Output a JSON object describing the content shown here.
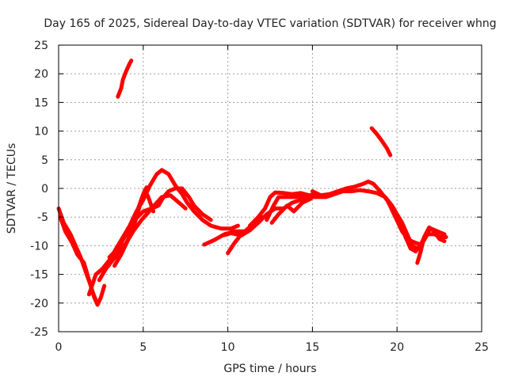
{
  "chart_data": {
    "type": "line",
    "title": "Day 165 of 2025, Sidereal Day-to-day VTEC variation (SDTVAR) for receiver whng",
    "xlabel": "GPS time / hours",
    "ylabel": "SDTVAR / TECUs",
    "xlim": [
      0,
      25
    ],
    "ylim": [
      -25,
      25
    ],
    "xticks": [
      0,
      5,
      10,
      15,
      20,
      25
    ],
    "yticks": [
      -25,
      -20,
      -15,
      -10,
      -5,
      0,
      5,
      10,
      15,
      20,
      25
    ],
    "xtick_labels": [
      "0",
      "5",
      "10",
      "15",
      "20",
      "25"
    ],
    "ytick_labels": [
      "-25",
      "-20",
      "-15",
      "-10",
      "-5",
      "0",
      "5",
      "10",
      "15",
      "20",
      "25"
    ],
    "grid": true,
    "legend": "none",
    "series_color": "#ff0000",
    "series": [
      {
        "name": "trace-1",
        "points": [
          [
            0,
            -3.5
          ],
          [
            0.3,
            -6
          ],
          [
            0.7,
            -8
          ],
          [
            1.0,
            -10
          ],
          [
            1.3,
            -12
          ],
          [
            1.6,
            -14.5
          ],
          [
            1.9,
            -17
          ],
          [
            2.1,
            -19
          ],
          [
            2.3,
            -20.3
          ],
          [
            2.5,
            -19
          ],
          [
            2.7,
            -17
          ]
        ]
      },
      {
        "name": "trace-2",
        "points": [
          [
            0.1,
            -5
          ],
          [
            0.4,
            -7.5
          ],
          [
            0.8,
            -9.5
          ],
          [
            1.1,
            -11.5
          ],
          [
            1.5,
            -13
          ],
          [
            1.8,
            -16
          ],
          [
            2.0,
            -18
          ],
          [
            2.2,
            -19.5
          ]
        ]
      },
      {
        "name": "trace-3",
        "points": [
          [
            1.8,
            -18.5
          ],
          [
            2.2,
            -15
          ],
          [
            2.6,
            -14
          ],
          [
            3.0,
            -12.5
          ],
          [
            3.4,
            -10.5
          ],
          [
            3.8,
            -8.5
          ],
          [
            4.2,
            -6.5
          ],
          [
            4.6,
            -4
          ],
          [
            5.0,
            -2
          ],
          [
            5.4,
            0.5
          ],
          [
            5.8,
            2.5
          ],
          [
            6.1,
            3.2
          ],
          [
            6.5,
            2.5
          ],
          [
            6.9,
            0.5
          ],
          [
            7.3,
            -1
          ],
          [
            7.6,
            -2.5
          ],
          [
            8.0,
            -4
          ],
          [
            8.5,
            -5.5
          ],
          [
            9.0,
            -6.5
          ],
          [
            9.6,
            -7
          ],
          [
            10.2,
            -7
          ],
          [
            10.6,
            -6.5
          ]
        ]
      },
      {
        "name": "trace-4",
        "points": [
          [
            2.4,
            -16
          ],
          [
            2.8,
            -14
          ],
          [
            3.2,
            -12.5
          ],
          [
            3.6,
            -11
          ],
          [
            4.0,
            -9.5
          ],
          [
            4.3,
            -8
          ],
          [
            4.6,
            -5
          ],
          [
            4.9,
            -2
          ],
          [
            5.1,
            -0.3
          ],
          [
            5.3,
            -1.5
          ],
          [
            5.6,
            -4
          ]
        ]
      },
      {
        "name": "trace-5",
        "points": [
          [
            3.3,
            -13.5
          ],
          [
            3.7,
            -11.5
          ],
          [
            4.1,
            -9
          ],
          [
            4.4,
            -6
          ],
          [
            4.7,
            -3.5
          ],
          [
            5.0,
            -1
          ],
          [
            5.2,
            0.2
          ]
        ]
      },
      {
        "name": "trace-6",
        "points": [
          [
            3.0,
            -12
          ],
          [
            3.5,
            -10.5
          ],
          [
            4.0,
            -8
          ],
          [
            4.5,
            -5.5
          ],
          [
            5.0,
            -4
          ],
          [
            5.5,
            -3.5
          ],
          [
            5.9,
            -3
          ],
          [
            6.2,
            -1.5
          ],
          [
            6.5,
            -0.5
          ],
          [
            6.9,
            0
          ],
          [
            7.3,
            0
          ],
          [
            7.7,
            -1.5
          ],
          [
            8.0,
            -3
          ],
          [
            8.5,
            -4.5
          ],
          [
            9.0,
            -5.5
          ]
        ]
      },
      {
        "name": "trace-7",
        "points": [
          [
            3.4,
            -12
          ],
          [
            3.9,
            -10
          ],
          [
            4.4,
            -7.5
          ],
          [
            4.9,
            -5.5
          ],
          [
            5.5,
            -3.5
          ],
          [
            6.1,
            -1.5
          ],
          [
            6.6,
            -1.2
          ],
          [
            7.0,
            -2.2
          ],
          [
            7.5,
            -3.5
          ]
        ]
      },
      {
        "name": "trace-8",
        "points": [
          [
            8.6,
            -9.8
          ],
          [
            9.2,
            -9
          ],
          [
            9.8,
            -8
          ],
          [
            10.4,
            -7.5
          ],
          [
            11.0,
            -7.5
          ],
          [
            11.5,
            -6.5
          ],
          [
            12.0,
            -5
          ]
        ]
      },
      {
        "name": "trace-9",
        "points": [
          [
            10.0,
            -11.3
          ],
          [
            10.4,
            -9.5
          ],
          [
            10.8,
            -8
          ],
          [
            11.2,
            -7
          ],
          [
            11.5,
            -6.2
          ]
        ]
      },
      {
        "name": "trace-10",
        "points": [
          [
            9.7,
            -8.2
          ],
          [
            10.2,
            -7.8
          ],
          [
            10.8,
            -8.2
          ],
          [
            11.3,
            -7.3
          ],
          [
            11.8,
            -6
          ],
          [
            12.3,
            -4.5
          ],
          [
            12.8,
            -3.5
          ],
          [
            13.3,
            -3.5
          ],
          [
            13.8,
            -2.5
          ],
          [
            14.3,
            -2
          ],
          [
            14.8,
            -1.5
          ],
          [
            15.3,
            -1.5
          ],
          [
            15.8,
            -1.5
          ],
          [
            16.3,
            -1.0
          ],
          [
            16.8,
            -0.5
          ],
          [
            17.3,
            -0.5
          ],
          [
            17.8,
            -0.3
          ],
          [
            18.3,
            -0.5
          ],
          [
            18.8,
            -0.8
          ],
          [
            19.3,
            -1.5
          ],
          [
            19.7,
            -3
          ],
          [
            20.0,
            -4.5
          ],
          [
            20.3,
            -6
          ],
          [
            20.6,
            -8
          ],
          [
            20.9,
            -10
          ],
          [
            21.2,
            -10.5
          ],
          [
            21.5,
            -9.5
          ],
          [
            21.8,
            -8
          ],
          [
            22.2,
            -8
          ],
          [
            22.6,
            -8.5
          ],
          [
            22.9,
            -8.5
          ]
        ]
      },
      {
        "name": "trace-11",
        "points": [
          [
            11.3,
            -6.5
          ],
          [
            11.8,
            -5
          ],
          [
            12.2,
            -3.5
          ],
          [
            12.5,
            -1.5
          ],
          [
            12.8,
            -0.7
          ],
          [
            13.3,
            -0.8
          ],
          [
            13.8,
            -1
          ],
          [
            14.3,
            -0.8
          ],
          [
            14.8,
            -1.2
          ],
          [
            15.2,
            -1
          ]
        ]
      },
      {
        "name": "trace-12",
        "points": [
          [
            12.3,
            -5.5
          ],
          [
            12.7,
            -3
          ],
          [
            13.0,
            -1.5
          ],
          [
            13.5,
            -1.5
          ],
          [
            14.0,
            -1.5
          ],
          [
            14.5,
            -1.3
          ]
        ]
      },
      {
        "name": "trace-13",
        "points": [
          [
            12.6,
            -6
          ],
          [
            13.0,
            -4.5
          ],
          [
            13.5,
            -3
          ],
          [
            13.9,
            -4
          ],
          [
            14.4,
            -2.5
          ],
          [
            14.9,
            -1.8
          ]
        ]
      },
      {
        "name": "trace-14",
        "points": [
          [
            15.0,
            -0.5
          ],
          [
            15.5,
            -1.2
          ],
          [
            16.0,
            -1.0
          ],
          [
            16.5,
            -0.5
          ],
          [
            17.0,
            0
          ],
          [
            17.5,
            0.3
          ],
          [
            18.0,
            0.8
          ],
          [
            18.3,
            1.2
          ],
          [
            18.6,
            0.8
          ],
          [
            19.0,
            -0.5
          ],
          [
            19.4,
            -2
          ],
          [
            19.8,
            -4
          ],
          [
            20.2,
            -6
          ],
          [
            20.5,
            -8.5
          ],
          [
            20.8,
            -10.5
          ],
          [
            21.1,
            -11
          ],
          [
            21.4,
            -10
          ],
          [
            21.7,
            -8.5
          ]
        ]
      },
      {
        "name": "trace-15",
        "points": [
          [
            19.5,
            -2.5
          ],
          [
            19.9,
            -5
          ],
          [
            20.3,
            -7.5
          ],
          [
            20.7,
            -9
          ],
          [
            21.1,
            -9.5
          ],
          [
            21.4,
            -9.8
          ],
          [
            21.7,
            -8
          ],
          [
            22.0,
            -7
          ],
          [
            22.4,
            -7.5
          ],
          [
            22.8,
            -8.0
          ]
        ]
      },
      {
        "name": "trace-16",
        "points": [
          [
            21.2,
            -13
          ],
          [
            21.4,
            -11
          ],
          [
            21.6,
            -8.5
          ],
          [
            21.9,
            -6.8
          ],
          [
            22.2,
            -7.5
          ],
          [
            22.5,
            -8.8
          ],
          [
            22.8,
            -9.2
          ]
        ]
      },
      {
        "name": "trace-17",
        "points": [
          [
            3.5,
            16
          ],
          [
            3.7,
            17.5
          ],
          [
            3.8,
            19
          ],
          [
            4.0,
            20.5
          ],
          [
            4.2,
            21.8
          ],
          [
            4.3,
            22.3
          ]
        ]
      },
      {
        "name": "trace-18",
        "points": [
          [
            18.5,
            10.5
          ],
          [
            18.8,
            9.5
          ],
          [
            19.1,
            8.3
          ],
          [
            19.4,
            7
          ],
          [
            19.6,
            5.8
          ]
        ]
      }
    ]
  }
}
